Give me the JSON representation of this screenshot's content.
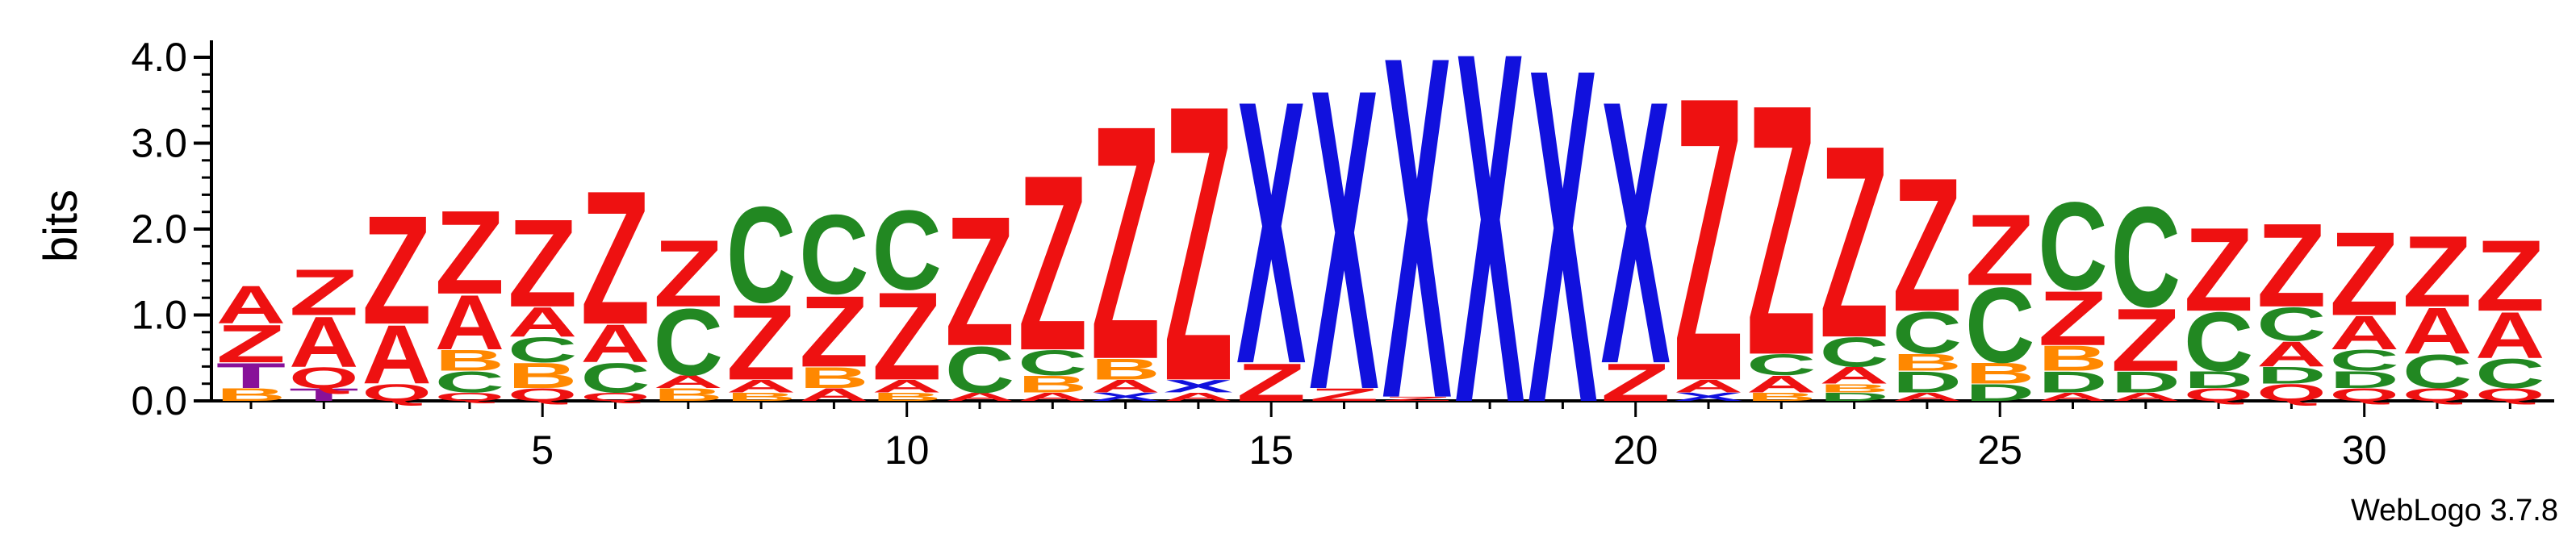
{
  "chart_data": {
    "type": "sequence-logo",
    "ylabel": "bits",
    "ylim": [
      0,
      4.2
    ],
    "yticks": [
      "0.0",
      "1.0",
      "2.0",
      "3.0",
      "4.0"
    ],
    "xticks": [
      5,
      10,
      15,
      20,
      25,
      30
    ],
    "footer": "WebLogo 3.7.8",
    "colors": {
      "A": "#ee1111",
      "Z": "#ee1111",
      "X": "#1111dd",
      "C": "#228822",
      "B": "#ff8800",
      "D": "#228822",
      "T": "#881199",
      "Q": "#ee1111"
    },
    "positions": [
      {
        "pos": 1,
        "stack": [
          [
            "B",
            0.15
          ],
          [
            "T",
            0.3
          ],
          [
            "Z",
            0.45
          ],
          [
            "A",
            0.45
          ]
        ]
      },
      {
        "pos": 2,
        "stack": [
          [
            "T",
            0.15
          ],
          [
            "Q",
            0.25
          ],
          [
            "A",
            0.6
          ],
          [
            "Z",
            0.55
          ]
        ]
      },
      {
        "pos": 3,
        "stack": [
          [
            "Q",
            0.2
          ],
          [
            "A",
            0.7
          ],
          [
            "Z",
            1.3
          ]
        ]
      },
      {
        "pos": 4,
        "stack": [
          [
            "Q",
            0.1
          ],
          [
            "C",
            0.25
          ],
          [
            "B",
            0.25
          ],
          [
            "A",
            0.65
          ],
          [
            "Z",
            1.0
          ]
        ]
      },
      {
        "pos": 5,
        "stack": [
          [
            "Q",
            0.15
          ],
          [
            "B",
            0.3
          ],
          [
            "C",
            0.3
          ],
          [
            "A",
            0.35
          ],
          [
            "Z",
            1.05
          ]
        ]
      },
      {
        "pos": 6,
        "stack": [
          [
            "Q",
            0.1
          ],
          [
            "C",
            0.35
          ],
          [
            "A",
            0.45
          ],
          [
            "Z",
            1.6
          ]
        ]
      },
      {
        "pos": 7,
        "stack": [
          [
            "B",
            0.15
          ],
          [
            "A",
            0.15
          ],
          [
            "C",
            0.8
          ],
          [
            "Z",
            0.8
          ]
        ]
      },
      {
        "pos": 8,
        "stack": [
          [
            "B",
            0.1
          ],
          [
            "A",
            0.15
          ],
          [
            "Z",
            0.9
          ],
          [
            "C",
            1.15
          ]
        ]
      },
      {
        "pos": 9,
        "stack": [
          [
            "A",
            0.15
          ],
          [
            "B",
            0.25
          ],
          [
            "Z",
            0.85
          ],
          [
            "C",
            0.95
          ]
        ]
      },
      {
        "pos": 10,
        "stack": [
          [
            "B",
            0.1
          ],
          [
            "A",
            0.15
          ],
          [
            "Z",
            1.05
          ],
          [
            "C",
            0.95
          ]
        ]
      },
      {
        "pos": 11,
        "stack": [
          [
            "A",
            0.1
          ],
          [
            "C",
            0.55
          ],
          [
            "Z",
            1.55
          ]
        ]
      },
      {
        "pos": 12,
        "stack": [
          [
            "A",
            0.1
          ],
          [
            "B",
            0.2
          ],
          [
            "C",
            0.3
          ],
          [
            "Z",
            2.1
          ]
        ]
      },
      {
        "pos": 13,
        "stack": [
          [
            "X",
            0.1
          ],
          [
            "A",
            0.15
          ],
          [
            "B",
            0.25
          ],
          [
            "Z",
            2.8
          ]
        ]
      },
      {
        "pos": 14,
        "stack": [
          [
            "A",
            0.1
          ],
          [
            "X",
            0.15
          ],
          [
            "Z",
            3.3
          ]
        ]
      },
      {
        "pos": 15,
        "stack": [
          [
            "Z",
            0.45
          ],
          [
            "X",
            3.15
          ]
        ]
      },
      {
        "pos": 16,
        "stack": [
          [
            "Z",
            0.15
          ],
          [
            "X",
            3.6
          ]
        ]
      },
      {
        "pos": 17,
        "stack": [
          [
            "Z",
            0.05
          ],
          [
            "X",
            4.1
          ]
        ]
      },
      {
        "pos": 18,
        "stack": [
          [
            "X",
            4.2
          ]
        ]
      },
      {
        "pos": 19,
        "stack": [
          [
            "X",
            4.0
          ]
        ]
      },
      {
        "pos": 20,
        "stack": [
          [
            "Z",
            0.45
          ],
          [
            "X",
            3.15
          ]
        ]
      },
      {
        "pos": 21,
        "stack": [
          [
            "X",
            0.1
          ],
          [
            "A",
            0.15
          ],
          [
            "Z",
            3.4
          ]
        ]
      },
      {
        "pos": 22,
        "stack": [
          [
            "B",
            0.1
          ],
          [
            "A",
            0.2
          ],
          [
            "C",
            0.25
          ],
          [
            "Z",
            3.0
          ]
        ]
      },
      {
        "pos": 23,
        "stack": [
          [
            "D",
            0.1
          ],
          [
            "B",
            0.1
          ],
          [
            "A",
            0.2
          ],
          [
            "C",
            0.35
          ],
          [
            "Z",
            2.3
          ]
        ]
      },
      {
        "pos": 24,
        "stack": [
          [
            "A",
            0.1
          ],
          [
            "D",
            0.25
          ],
          [
            "B",
            0.2
          ],
          [
            "C",
            0.5
          ],
          [
            "Z",
            1.6
          ]
        ]
      },
      {
        "pos": 25,
        "stack": [
          [
            "D",
            0.2
          ],
          [
            "B",
            0.25
          ],
          [
            "C",
            0.9
          ],
          [
            "Z",
            0.85
          ]
        ]
      },
      {
        "pos": 26,
        "stack": [
          [
            "A",
            0.1
          ],
          [
            "D",
            0.25
          ],
          [
            "B",
            0.3
          ],
          [
            "Z",
            0.65
          ],
          [
            "C",
            1.05
          ]
        ]
      },
      {
        "pos": 27,
        "stack": [
          [
            "A",
            0.1
          ],
          [
            "D",
            0.25
          ],
          [
            "Z",
            0.75
          ],
          [
            "C",
            1.2
          ]
        ]
      },
      {
        "pos": 28,
        "stack": [
          [
            "Q",
            0.15
          ],
          [
            "D",
            0.2
          ],
          [
            "C",
            0.7
          ],
          [
            "Z",
            1.0
          ]
        ]
      },
      {
        "pos": 29,
        "stack": [
          [
            "Q",
            0.2
          ],
          [
            "D",
            0.2
          ],
          [
            "A",
            0.3
          ],
          [
            "C",
            0.4
          ],
          [
            "Z",
            1.0
          ]
        ]
      },
      {
        "pos": 30,
        "stack": [
          [
            "Q",
            0.15
          ],
          [
            "D",
            0.2
          ],
          [
            "C",
            0.25
          ],
          [
            "A",
            0.4
          ],
          [
            "Z",
            1.0
          ]
        ]
      },
      {
        "pos": 31,
        "stack": [
          [
            "Q",
            0.15
          ],
          [
            "C",
            0.4
          ],
          [
            "A",
            0.55
          ],
          [
            "Z",
            0.85
          ]
        ]
      },
      {
        "pos": 32,
        "stack": [
          [
            "Q",
            0.15
          ],
          [
            "C",
            0.35
          ],
          [
            "A",
            0.55
          ],
          [
            "Z",
            0.85
          ]
        ]
      }
    ]
  }
}
